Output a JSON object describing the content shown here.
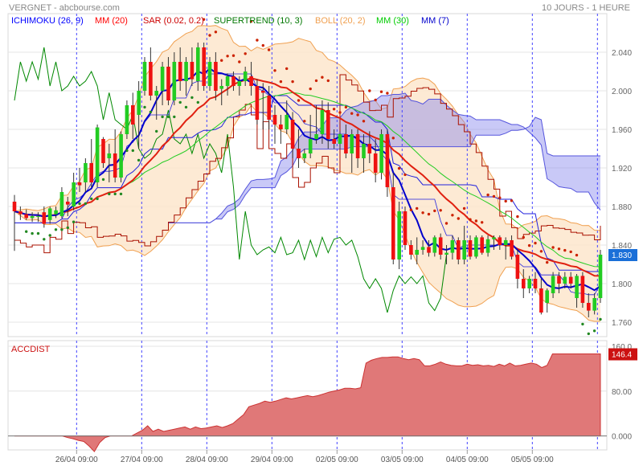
{
  "header": {
    "title": "VERGNET - abcbourse.com",
    "period": "10 JOURS - 1 HEURE"
  },
  "legend": [
    {
      "label": "ICHIMOKU (26, 9)",
      "color": "#0000ff"
    },
    {
      "label": "MM (20)",
      "color": "#ff0000"
    },
    {
      "label": "SAR (0.02, 0.2)",
      "color": "#cc0000"
    },
    {
      "label": "SUPERTREND (10, 3)",
      "color": "#007700"
    },
    {
      "label": "BOLL (20, 2)",
      "color": "#f0a050"
    },
    {
      "label": "MM (30)",
      "color": "#00cc00"
    },
    {
      "label": "MM (7)",
      "color": "#0000cc"
    }
  ],
  "colors": {
    "up": "#22cc22",
    "down": "#ee1111",
    "grid": "#e4e4e4",
    "session_line": "#4444ff",
    "boll_fill": "#fde6cc",
    "boll_line": "#f0a050",
    "cloud_fill": "#8888ee",
    "ichimoku": "#0000ff",
    "ichimoku_thin": "#2222dd",
    "chikou": "#008800",
    "ma20": "#e02010",
    "ma30": "#22cc22",
    "ma7": "#0000cc",
    "sar": "#cc2200",
    "sar_bull": "#228822",
    "supertrend": "#aa1100",
    "supertrend_bull": "#777711",
    "accdist_fill": "#e07878",
    "accdist_line": "#cc3333",
    "last_price_badge": "#1a6fd8",
    "last_acc_badge": "#cc1111"
  },
  "chart_data": [
    {
      "type": "candlestick",
      "title": "VERGNET",
      "ylim": [
        1.745,
        2.08
      ],
      "y_ticks": [
        "2.040",
        "2.000",
        "1.960",
        "1.920",
        "1.880",
        "1.840",
        "1.800",
        "1.760"
      ],
      "y_tick_values": [
        2.04,
        2.0,
        1.96,
        1.92,
        1.88,
        1.84,
        1.8,
        1.76
      ],
      "x_labels": [
        "26/04 09:00",
        "27/04 09:00",
        "28/04 09:00",
        "29/04 09:00",
        "02/05 09:00",
        "03/05 09:00",
        "04/05 09:00",
        "05/05 09:00"
      ],
      "last_price": "1.830",
      "last_price_value": 1.83,
      "candles": [
        {
          "o": 1.885,
          "h": 1.892,
          "l": 1.834,
          "c": 1.875
        },
        {
          "o": 1.875,
          "h": 1.88,
          "l": 1.866,
          "c": 1.872
        },
        {
          "o": 1.872,
          "h": 1.877,
          "l": 1.866,
          "c": 1.868
        },
        {
          "o": 1.868,
          "h": 1.874,
          "l": 1.864,
          "c": 1.87
        },
        {
          "o": 1.87,
          "h": 1.874,
          "l": 1.864,
          "c": 1.87
        },
        {
          "o": 1.874,
          "h": 1.88,
          "l": 1.858,
          "c": 1.862
        },
        {
          "o": 1.866,
          "h": 1.88,
          "l": 1.862,
          "c": 1.878
        },
        {
          "o": 1.872,
          "h": 1.88,
          "l": 1.868,
          "c": 1.876
        },
        {
          "o": 1.87,
          "h": 1.9,
          "l": 1.868,
          "c": 1.895
        },
        {
          "o": 1.885,
          "h": 1.89,
          "l": 1.87,
          "c": 1.882
        },
        {
          "o": 1.88,
          "h": 1.915,
          "l": 1.876,
          "c": 1.905
        },
        {
          "o": 1.905,
          "h": 1.92,
          "l": 1.895,
          "c": 1.902
        },
        {
          "o": 1.905,
          "h": 1.93,
          "l": 1.895,
          "c": 1.925
        },
        {
          "o": 1.925,
          "h": 1.95,
          "l": 1.9,
          "c": 1.905
        },
        {
          "o": 1.905,
          "h": 1.965,
          "l": 1.9,
          "c": 1.962
        },
        {
          "o": 1.95,
          "h": 1.952,
          "l": 1.92,
          "c": 1.925
        },
        {
          "o": 1.93,
          "h": 1.945,
          "l": 1.905,
          "c": 1.935
        },
        {
          "o": 1.935,
          "h": 1.96,
          "l": 1.905,
          "c": 1.91
        },
        {
          "o": 1.91,
          "h": 1.958,
          "l": 1.905,
          "c": 1.955
        },
        {
          "o": 1.955,
          "h": 1.99,
          "l": 1.95,
          "c": 1.985
        },
        {
          "o": 1.985,
          "h": 1.998,
          "l": 1.95,
          "c": 1.965
        },
        {
          "o": 1.975,
          "h": 2.01,
          "l": 1.94,
          "c": 2.0
        },
        {
          "o": 2.0,
          "h": 2.035,
          "l": 1.995,
          "c": 2.03
        },
        {
          "o": 2.03,
          "h": 2.045,
          "l": 1.99,
          "c": 1.995
        },
        {
          "o": 1.995,
          "h": 2.005,
          "l": 1.97,
          "c": 2.0
        },
        {
          "o": 2.0,
          "h": 2.03,
          "l": 1.985,
          "c": 2.025
        },
        {
          "o": 2.025,
          "h": 2.035,
          "l": 1.985,
          "c": 1.99
        },
        {
          "o": 1.99,
          "h": 2.04,
          "l": 1.985,
          "c": 2.03
        },
        {
          "o": 2.03,
          "h": 2.045,
          "l": 2.0,
          "c": 2.01
        },
        {
          "o": 2.01,
          "h": 2.035,
          "l": 1.995,
          "c": 2.03
        },
        {
          "o": 2.03,
          "h": 2.045,
          "l": 2.005,
          "c": 2.012
        },
        {
          "o": 2.01,
          "h": 2.05,
          "l": 2.0,
          "c": 2.045
        },
        {
          "o": 2.045,
          "h": 2.05,
          "l": 2.0,
          "c": 2.005
        },
        {
          "o": 2.005,
          "h": 2.035,
          "l": 2.0,
          "c": 2.03
        },
        {
          "o": 2.03,
          "h": 2.04,
          "l": 1.99,
          "c": 2.0
        },
        {
          "o": 2.002,
          "h": 2.012,
          "l": 1.985,
          "c": 2.005
        },
        {
          "o": 2.005,
          "h": 2.018,
          "l": 1.995,
          "c": 2.015
        },
        {
          "o": 2.015,
          "h": 2.02,
          "l": 2.0,
          "c": 2.005
        },
        {
          "o": 2.005,
          "h": 2.015,
          "l": 1.995,
          "c": 2.01
        },
        {
          "o": 2.01,
          "h": 2.025,
          "l": 2.005,
          "c": 2.02
        },
        {
          "o": 2.015,
          "h": 2.03,
          "l": 1.995,
          "c": 2.005
        },
        {
          "o": 2.005,
          "h": 2.012,
          "l": 1.965,
          "c": 1.97
        },
        {
          "o": 2.0,
          "h": 2.008,
          "l": 1.96,
          "c": 1.998
        },
        {
          "o": 1.995,
          "h": 2.005,
          "l": 1.96,
          "c": 1.97
        },
        {
          "o": 1.975,
          "h": 1.985,
          "l": 1.945,
          "c": 1.965
        },
        {
          "o": 1.965,
          "h": 1.975,
          "l": 1.945,
          "c": 1.96
        },
        {
          "o": 1.96,
          "h": 1.99,
          "l": 1.955,
          "c": 1.975
        },
        {
          "o": 1.97,
          "h": 1.978,
          "l": 1.93,
          "c": 1.94
        },
        {
          "o": 1.94,
          "h": 1.96,
          "l": 1.92,
          "c": 1.93
        },
        {
          "o": 1.93,
          "h": 1.94,
          "l": 1.925,
          "c": 1.935
        },
        {
          "o": 1.935,
          "h": 1.975,
          "l": 1.93,
          "c": 1.95
        },
        {
          "o": 1.95,
          "h": 1.985,
          "l": 1.945,
          "c": 1.955
        },
        {
          "o": 1.955,
          "h": 1.99,
          "l": 1.945,
          "c": 1.98
        },
        {
          "o": 1.98,
          "h": 1.988,
          "l": 1.94,
          "c": 1.95
        },
        {
          "o": 1.95,
          "h": 1.96,
          "l": 1.94,
          "c": 1.945
        },
        {
          "o": 1.945,
          "h": 1.958,
          "l": 1.94,
          "c": 1.955
        },
        {
          "o": 1.955,
          "h": 1.965,
          "l": 1.93,
          "c": 1.935
        },
        {
          "o": 1.935,
          "h": 1.96,
          "l": 1.915,
          "c": 1.955
        },
        {
          "o": 1.955,
          "h": 1.96,
          "l": 1.92,
          "c": 1.93
        },
        {
          "o": 1.93,
          "h": 1.955,
          "l": 1.915,
          "c": 1.945
        },
        {
          "o": 1.945,
          "h": 1.958,
          "l": 1.925,
          "c": 1.935
        },
        {
          "o": 1.935,
          "h": 1.95,
          "l": 1.905,
          "c": 1.915
        },
        {
          "o": 1.915,
          "h": 1.96,
          "l": 1.908,
          "c": 1.955
        },
        {
          "o": 1.955,
          "h": 1.96,
          "l": 1.89,
          "c": 1.9
        },
        {
          "o": 1.9,
          "h": 1.915,
          "l": 1.82,
          "c": 1.825
        },
        {
          "o": 1.825,
          "h": 1.885,
          "l": 1.815,
          "c": 1.875
        },
        {
          "o": 1.875,
          "h": 1.88,
          "l": 1.835,
          "c": 1.84
        },
        {
          "o": 1.84,
          "h": 1.845,
          "l": 1.825,
          "c": 1.83
        },
        {
          "o": 1.83,
          "h": 1.848,
          "l": 1.82,
          "c": 1.835
        },
        {
          "o": 1.835,
          "h": 1.845,
          "l": 1.83,
          "c": 1.838
        },
        {
          "o": 1.838,
          "h": 1.845,
          "l": 1.828,
          "c": 1.832
        },
        {
          "o": 1.832,
          "h": 1.85,
          "l": 1.828,
          "c": 1.848
        },
        {
          "o": 1.848,
          "h": 1.852,
          "l": 1.825,
          "c": 1.83
        },
        {
          "o": 1.83,
          "h": 1.84,
          "l": 1.82,
          "c": 1.832
        },
        {
          "o": 1.832,
          "h": 1.85,
          "l": 1.825,
          "c": 1.845
        },
        {
          "o": 1.845,
          "h": 1.848,
          "l": 1.82,
          "c": 1.825
        },
        {
          "o": 1.825,
          "h": 1.86,
          "l": 1.82,
          "c": 1.845
        },
        {
          "o": 1.845,
          "h": 1.85,
          "l": 1.825,
          "c": 1.828
        },
        {
          "o": 1.828,
          "h": 1.85,
          "l": 1.826,
          "c": 1.848
        },
        {
          "o": 1.848,
          "h": 1.85,
          "l": 1.83,
          "c": 1.832
        },
        {
          "o": 1.832,
          "h": 1.85,
          "l": 1.828,
          "c": 1.846
        },
        {
          "o": 1.846,
          "h": 1.85,
          "l": 1.835,
          "c": 1.848
        },
        {
          "o": 1.848,
          "h": 1.85,
          "l": 1.835,
          "c": 1.84
        },
        {
          "o": 1.84,
          "h": 1.848,
          "l": 1.825,
          "c": 1.845
        },
        {
          "o": 1.845,
          "h": 1.85,
          "l": 1.825,
          "c": 1.828
        },
        {
          "o": 1.83,
          "h": 1.835,
          "l": 1.795,
          "c": 1.805
        },
        {
          "o": 1.805,
          "h": 1.815,
          "l": 1.785,
          "c": 1.795
        },
        {
          "o": 1.795,
          "h": 1.808,
          "l": 1.79,
          "c": 1.805
        },
        {
          "o": 1.805,
          "h": 1.812,
          "l": 1.79,
          "c": 1.795
        },
        {
          "o": 1.795,
          "h": 1.805,
          "l": 1.768,
          "c": 1.77
        },
        {
          "o": 1.78,
          "h": 1.795,
          "l": 1.77,
          "c": 1.793
        },
        {
          "o": 1.79,
          "h": 1.812,
          "l": 1.785,
          "c": 1.808
        },
        {
          "o": 1.808,
          "h": 1.812,
          "l": 1.79,
          "c": 1.8
        },
        {
          "o": 1.8,
          "h": 1.812,
          "l": 1.795,
          "c": 1.807
        },
        {
          "o": 1.807,
          "h": 1.812,
          "l": 1.795,
          "c": 1.8
        },
        {
          "o": 1.785,
          "h": 1.81,
          "l": 1.775,
          "c": 1.808
        },
        {
          "o": 1.808,
          "h": 1.812,
          "l": 1.775,
          "c": 1.78
        },
        {
          "o": 1.78,
          "h": 1.79,
          "l": 1.765,
          "c": 1.772
        },
        {
          "o": 1.772,
          "h": 1.79,
          "l": 1.768,
          "c": 1.785
        },
        {
          "o": 1.785,
          "h": 1.835,
          "l": 1.78,
          "c": 1.83
        }
      ]
    },
    {
      "type": "area",
      "title": "ACCDIST",
      "ylim": [
        -25,
        160
      ],
      "y_ticks": [
        "160.0",
        "80.00",
        "0.000"
      ],
      "y_tick_values": [
        160,
        80,
        0
      ],
      "last_value": "146.4",
      "last_value_num": 146.4,
      "values": [
        0,
        0,
        0,
        0,
        0,
        0,
        0,
        0,
        0,
        0,
        -3,
        -5,
        -8,
        -10,
        -18,
        -28,
        -12,
        -3,
        0,
        0,
        0,
        0,
        0,
        5,
        10,
        18,
        8,
        12,
        8,
        10,
        12,
        14,
        16,
        12,
        16,
        13,
        14,
        16,
        18,
        15,
        18,
        22,
        30,
        38,
        52,
        55,
        58,
        62,
        60,
        62,
        65,
        68,
        66,
        68,
        70,
        72,
        70,
        72,
        75,
        78,
        80,
        82,
        85,
        85,
        84,
        86,
        130,
        135,
        138,
        140,
        140,
        141,
        141,
        138,
        136,
        138,
        136,
        125,
        125,
        128,
        132,
        128,
        126,
        125,
        125,
        128,
        126,
        127,
        125,
        126,
        124,
        128,
        125,
        130,
        125,
        126,
        128,
        130,
        128,
        122,
        126,
        146.4,
        146.4,
        146.4,
        146.4,
        146.4,
        146.4,
        146.4,
        146.4,
        146.4,
        146.4
      ]
    }
  ]
}
